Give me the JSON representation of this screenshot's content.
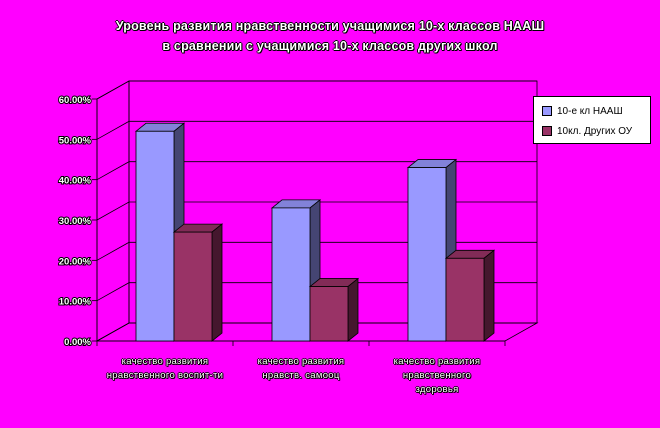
{
  "chart_data": {
    "type": "bar",
    "title": "Уровень развития нравственности учащимися 10-х классов НААШ",
    "subtitle": "в сравнении с учащимися 10-х классов других школ",
    "categories": [
      [
        "качество развития",
        "нравственного воспит-ти"
      ],
      [
        "качество развития",
        "нравств. самооц"
      ],
      [
        "качество развития",
        "нравственного",
        "здоровья"
      ]
    ],
    "series": [
      {
        "name": "10-е кл НААШ",
        "values": [
          52,
          33,
          43
        ],
        "color": "#9999ff"
      },
      {
        "name": "10кл. Других ОУ",
        "values": [
          27,
          13.5,
          20.5
        ],
        "color": "#993366"
      }
    ],
    "ylim": [
      0,
      60
    ],
    "yticks": [
      "0.00%",
      "10.00%",
      "20.00%",
      "30.00%",
      "40.00%",
      "50.00%",
      "60.00%"
    ],
    "grid": true,
    "legend_position": "right",
    "bar_style": "3d"
  }
}
